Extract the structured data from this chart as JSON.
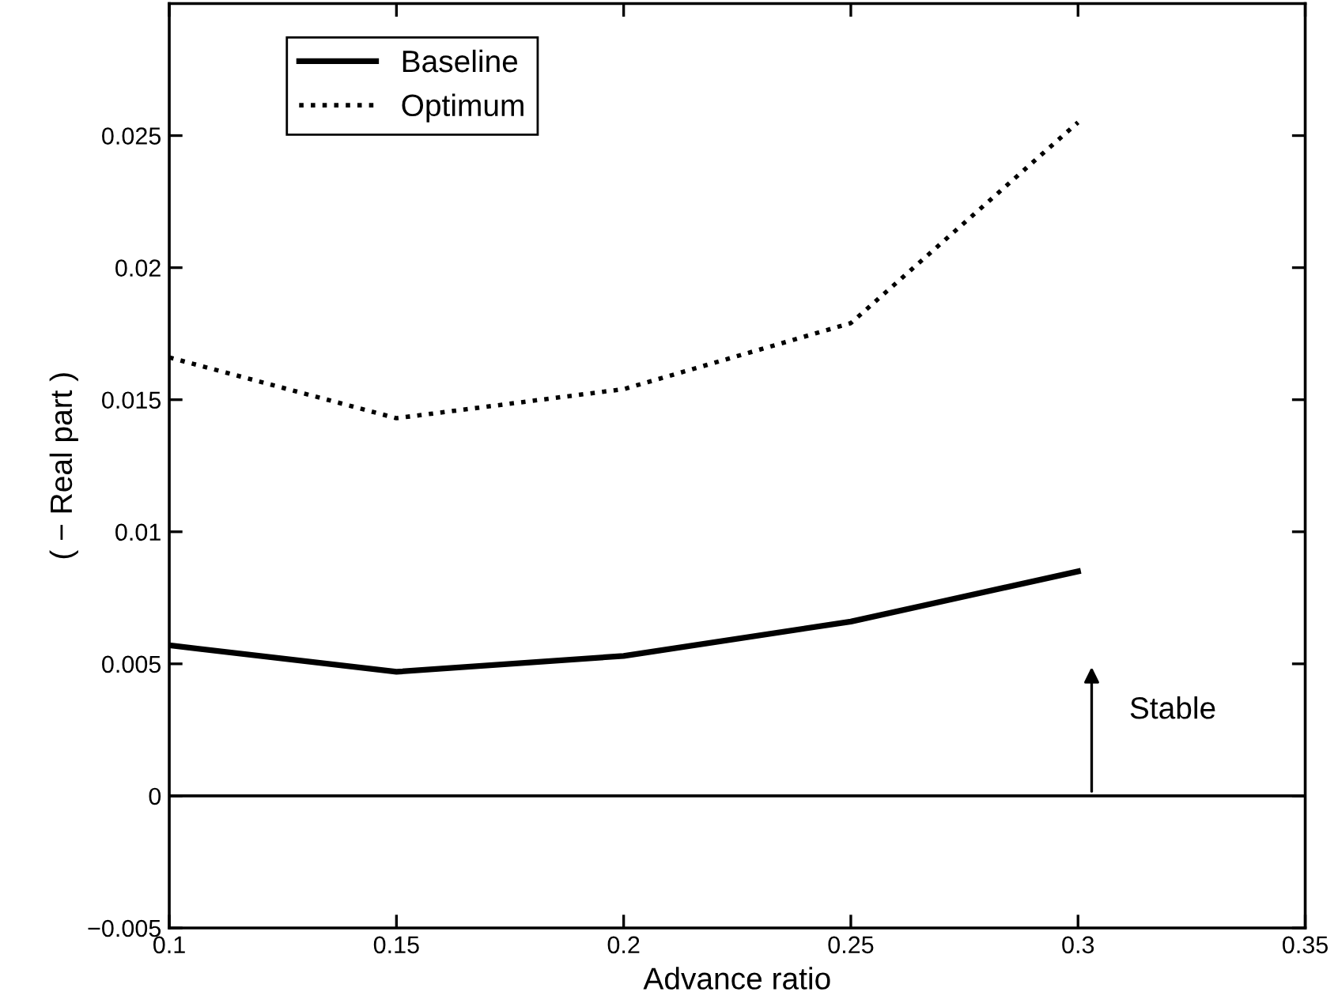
{
  "chart_data": {
    "type": "line",
    "xlabel": "Advance ratio",
    "ylabel": "( − Real part )",
    "x": [
      0.1,
      0.15,
      0.2,
      0.25,
      0.3
    ],
    "series": [
      {
        "name": "Baseline",
        "color": "#000000",
        "line_style": "solid",
        "values": [
          0.0057,
          0.0047,
          0.0053,
          0.0066,
          0.0085
        ]
      },
      {
        "name": "Optimum",
        "color": "#000000",
        "line_style": "dotted",
        "values": [
          0.0166,
          0.0143,
          0.0154,
          0.0179,
          0.0255
        ]
      }
    ],
    "xlim": [
      0.1,
      0.35
    ],
    "xticks": [
      0.1,
      0.15,
      0.2,
      0.25,
      0.3,
      0.35
    ],
    "ylim": [
      -0.005,
      0.03
    ],
    "yticks": [
      {
        "value": -0.005,
        "label": "−0.005"
      },
      0,
      0.005,
      0.01,
      0.015,
      0.02,
      0.025
    ],
    "ref_lines": [
      {
        "axis": "y",
        "value": 0,
        "color": "#000000",
        "line_style": "solid"
      }
    ],
    "annotations": [
      "Stable"
    ],
    "legend": "top left",
    "grid": false,
    "marker": "none"
  }
}
